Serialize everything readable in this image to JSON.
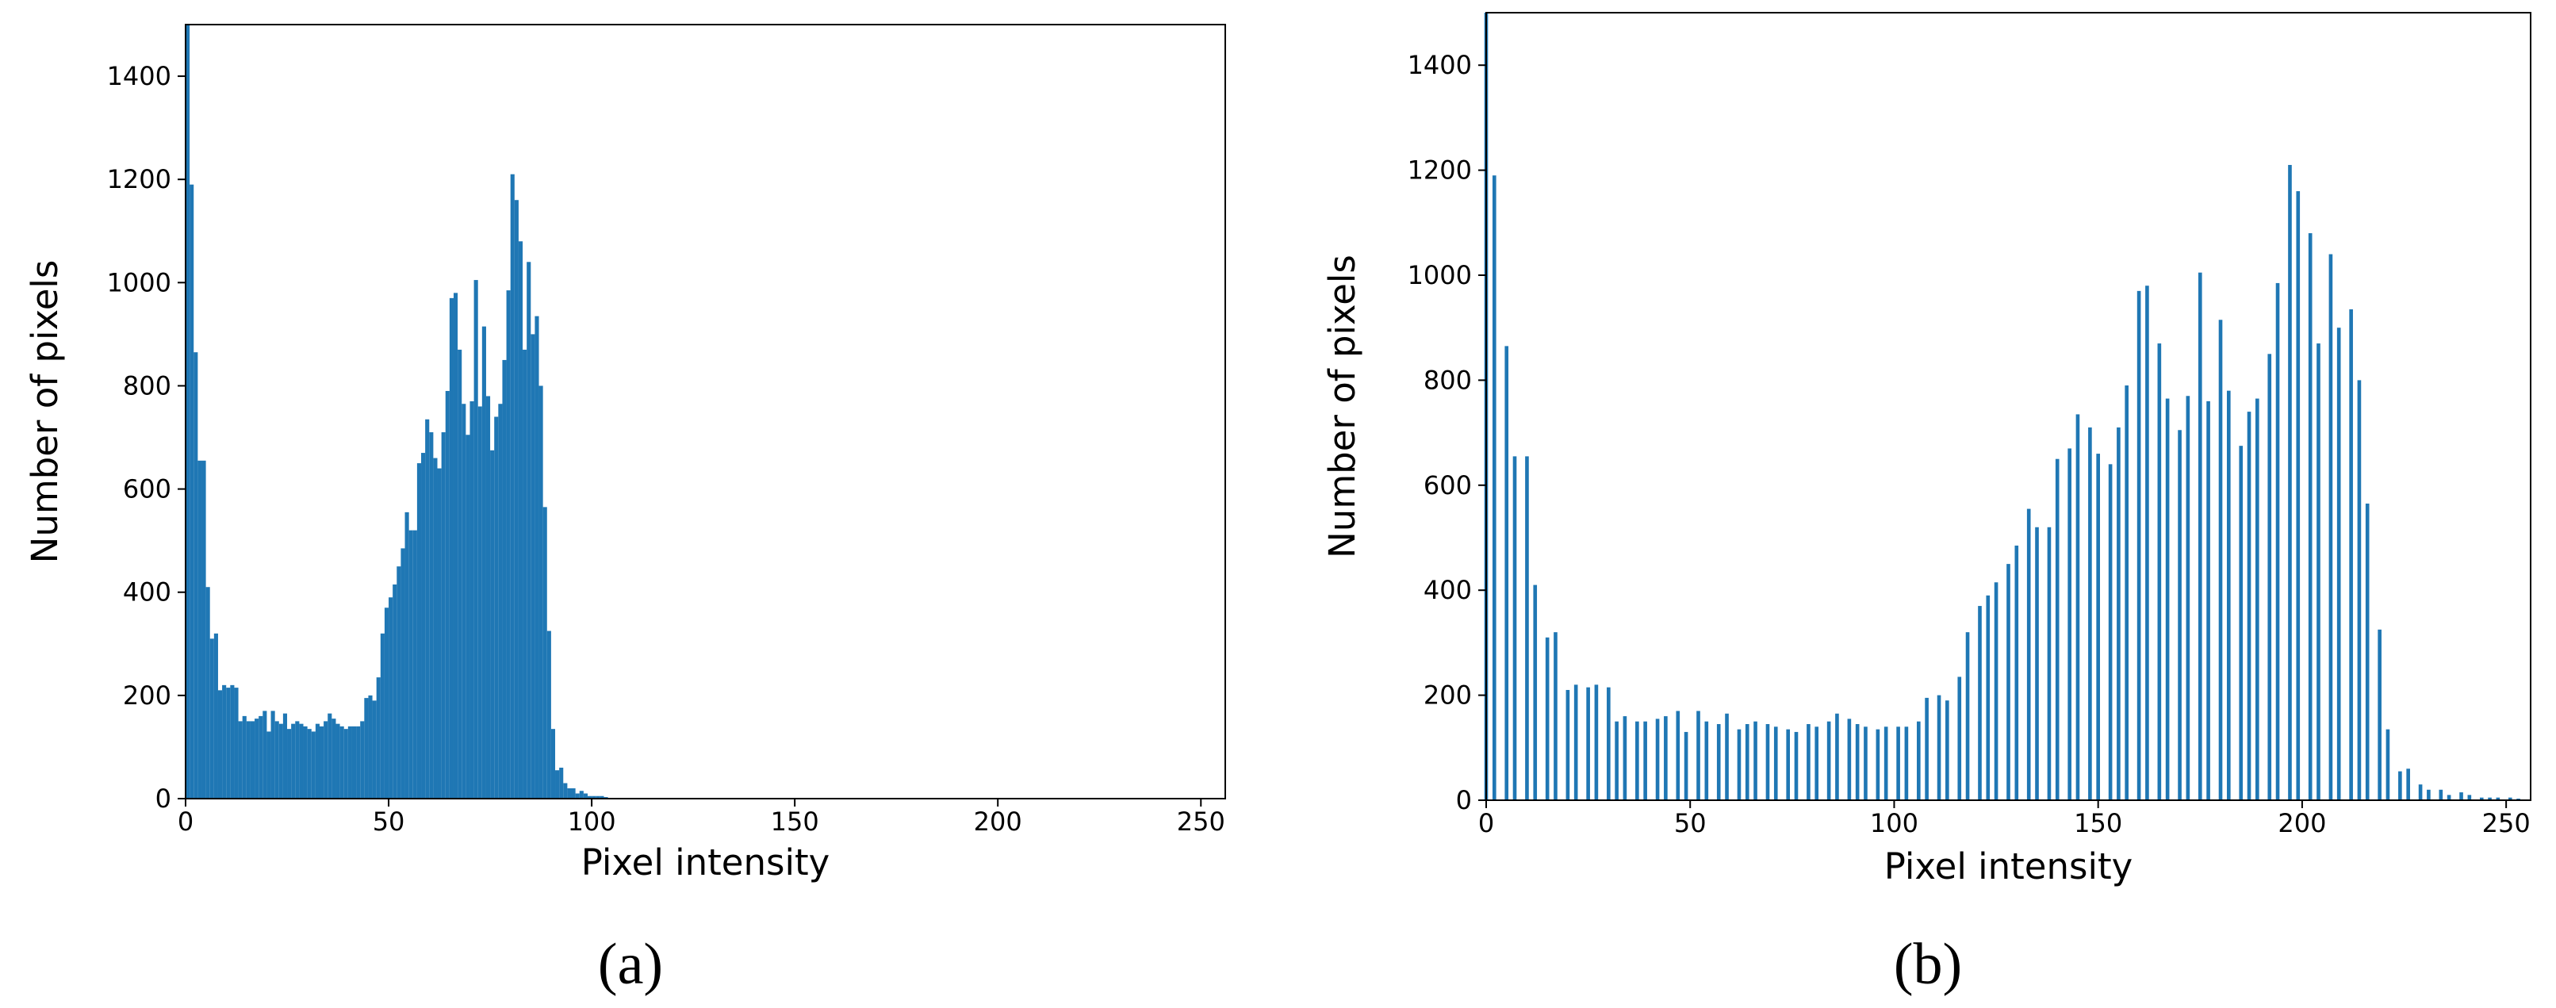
{
  "chart_data": [
    {
      "type": "histogram",
      "caption": "(a)",
      "x_label": "Pixel intensity",
      "y_label": "Number of pixels",
      "color": "#1f77b4",
      "bins": [
        0,
        1,
        2,
        3,
        4,
        5,
        6,
        7,
        8,
        9,
        10,
        11,
        12,
        13,
        14,
        15,
        16,
        17,
        18,
        19,
        20,
        21,
        22,
        23,
        24,
        25,
        26,
        27,
        28,
        29,
        30,
        31,
        32,
        33,
        34,
        35,
        36,
        37,
        38,
        39,
        40,
        41,
        42,
        43,
        44,
        45,
        46,
        47,
        48,
        49,
        50,
        51,
        52,
        53,
        54,
        55,
        56,
        57,
        58,
        59,
        60,
        61,
        62,
        63,
        64,
        65,
        66,
        67,
        68,
        69,
        70,
        71,
        72,
        73,
        74,
        75,
        76,
        77,
        78,
        79,
        80,
        81,
        82,
        83,
        84,
        85,
        86,
        87,
        88,
        89,
        90,
        91,
        92,
        93,
        94,
        95,
        96,
        97,
        98,
        99,
        100,
        101,
        102,
        103,
        104
      ],
      "counts": [
        1500,
        1190,
        865,
        655,
        655,
        410,
        310,
        320,
        210,
        220,
        215,
        220,
        215,
        150,
        160,
        150,
        150,
        155,
        160,
        170,
        130,
        170,
        150,
        145,
        165,
        135,
        145,
        150,
        145,
        140,
        135,
        130,
        145,
        140,
        150,
        165,
        155,
        145,
        140,
        135,
        140,
        140,
        140,
        150,
        195,
        200,
        190,
        235,
        320,
        370,
        390,
        415,
        450,
        485,
        555,
        520,
        520,
        650,
        670,
        735,
        710,
        660,
        640,
        710,
        790,
        970,
        980,
        870,
        765,
        705,
        770,
        1005,
        760,
        915,
        780,
        675,
        740,
        765,
        850,
        985,
        1210,
        1160,
        1080,
        870,
        1040,
        900,
        935,
        800,
        565,
        325,
        135,
        55,
        60,
        30,
        20,
        20,
        10,
        15,
        10,
        5,
        5,
        5,
        5,
        3
      ],
      "xlim": [
        0,
        256
      ],
      "ylim": [
        0,
        1500
      ],
      "xticks": [
        0,
        50,
        100,
        150,
        200,
        250
      ],
      "yticks": [
        0,
        200,
        400,
        600,
        800,
        1000,
        1200,
        1400
      ]
    },
    {
      "type": "bar",
      "caption": "(b)",
      "x_label": "Pixel intensity",
      "y_label": "Number of pixels",
      "color": "#1f77b4",
      "x": [
        0,
        2,
        5,
        7,
        10,
        12,
        15,
        17,
        20,
        22,
        25,
        27,
        30,
        32,
        34,
        37,
        39,
        42,
        44,
        47,
        49,
        52,
        54,
        57,
        59,
        62,
        64,
        66,
        69,
        71,
        74,
        76,
        79,
        81,
        84,
        86,
        89,
        91,
        93,
        96,
        98,
        101,
        103,
        106,
        108,
        111,
        113,
        116,
        118,
        121,
        123,
        125,
        128,
        130,
        133,
        135,
        138,
        140,
        143,
        145,
        148,
        150,
        153,
        155,
        157,
        160,
        162,
        165,
        167,
        170,
        172,
        175,
        177,
        180,
        182,
        185,
        187,
        189,
        192,
        194,
        197,
        199,
        202,
        204,
        207,
        209,
        212,
        214,
        216,
        219,
        221,
        224,
        226,
        229,
        231,
        234,
        236,
        239,
        241,
        244,
        246,
        248,
        251,
        253
      ],
      "values": [
        1500,
        1190,
        865,
        655,
        655,
        410,
        310,
        320,
        210,
        220,
        215,
        220,
        215,
        150,
        160,
        150,
        150,
        155,
        160,
        170,
        130,
        170,
        150,
        145,
        165,
        135,
        145,
        150,
        145,
        140,
        135,
        130,
        145,
        140,
        150,
        165,
        155,
        145,
        140,
        135,
        140,
        140,
        140,
        150,
        195,
        200,
        190,
        235,
        320,
        370,
        390,
        415,
        450,
        485,
        555,
        520,
        520,
        650,
        670,
        735,
        710,
        660,
        640,
        710,
        790,
        970,
        980,
        870,
        765,
        705,
        770,
        1005,
        760,
        915,
        780,
        675,
        740,
        765,
        850,
        985,
        1210,
        1160,
        1080,
        870,
        1040,
        900,
        935,
        800,
        565,
        325,
        135,
        55,
        60,
        30,
        20,
        20,
        10,
        15,
        10,
        5,
        5,
        5,
        5,
        3
      ],
      "xlim": [
        0,
        256
      ],
      "ylim": [
        0,
        1500
      ],
      "xticks": [
        0,
        50,
        100,
        150,
        200,
        250
      ],
      "yticks": [
        0,
        200,
        400,
        600,
        800,
        1000,
        1200,
        1400
      ]
    }
  ]
}
